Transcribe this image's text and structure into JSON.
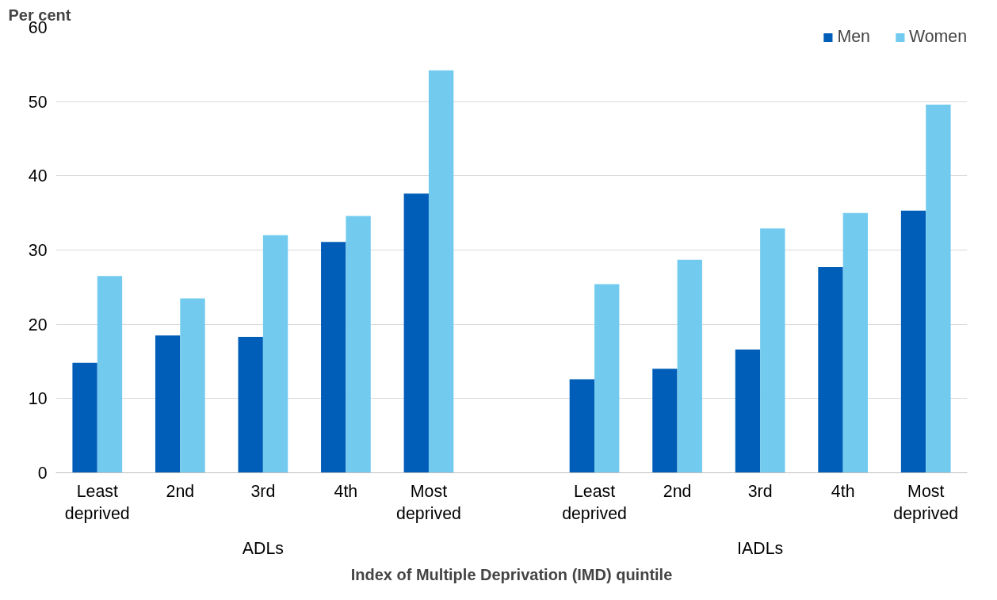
{
  "chart_data": {
    "type": "bar",
    "ylabel": "Per cent",
    "xlabel": "Index of Multiple Deprivation (IMD) quintile",
    "categories": [
      "Least deprived",
      "2nd",
      "3rd",
      "4th",
      "Most deprived",
      null,
      "Least deprived",
      "2nd",
      "3rd",
      "4th",
      "Most deprived"
    ],
    "annotations": [
      "ADLs",
      "IADLs"
    ],
    "series": [
      {
        "name": "Men",
        "color": "#005eb8",
        "values": [
          14.8,
          18.5,
          18.3,
          31.1,
          37.6,
          null,
          12.6,
          14.0,
          16.6,
          27.7,
          35.3
        ]
      },
      {
        "name": "Women",
        "color": "#72cbef",
        "values": [
          26.5,
          23.5,
          32.0,
          34.6,
          54.2,
          null,
          25.4,
          28.7,
          32.9,
          35.0,
          49.6
        ]
      }
    ],
    "ylim": [
      0,
      60
    ],
    "yticks": [
      0,
      10,
      20,
      30,
      40,
      50,
      60
    ],
    "grid": "y",
    "legend": "top right"
  }
}
